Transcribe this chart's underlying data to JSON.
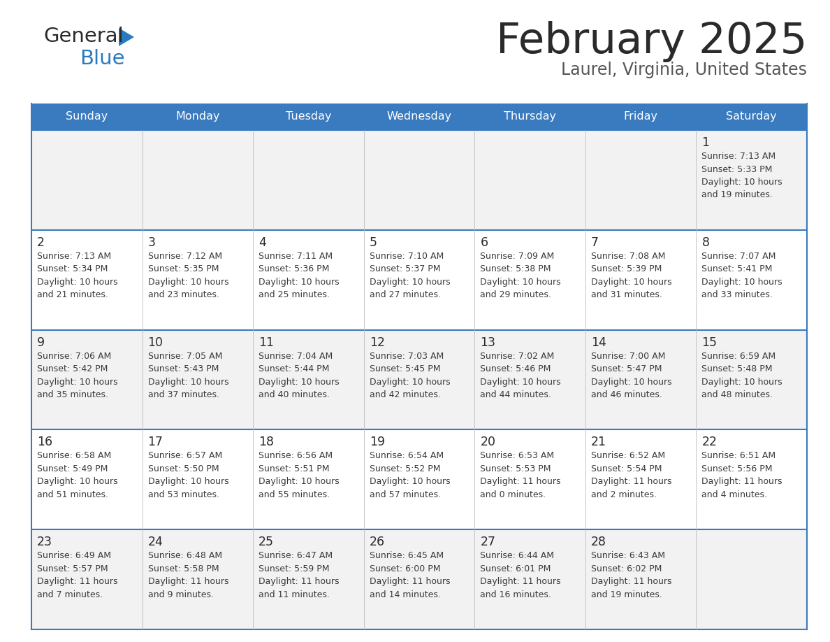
{
  "title": "February 2025",
  "subtitle": "Laurel, Virginia, United States",
  "days_of_week": [
    "Sunday",
    "Monday",
    "Tuesday",
    "Wednesday",
    "Thursday",
    "Friday",
    "Saturday"
  ],
  "header_bg": "#3a7abf",
  "header_text": "#ffffff",
  "cell_bg_odd": "#f2f2f2",
  "cell_bg_even": "#ffffff",
  "border_color": "#3a7abf",
  "day_num_color": "#2a2a2a",
  "info_color": "#3a3a3a",
  "title_color": "#2a2a2a",
  "subtitle_color": "#555555",
  "calendar_data": [
    [
      null,
      null,
      null,
      null,
      null,
      null,
      {
        "day": "1",
        "sunrise": "7:13 AM",
        "sunset": "5:33 PM",
        "daylight_line1": "Daylight: 10 hours",
        "daylight_line2": "and 19 minutes."
      }
    ],
    [
      {
        "day": "2",
        "sunrise": "7:13 AM",
        "sunset": "5:34 PM",
        "daylight_line1": "Daylight: 10 hours",
        "daylight_line2": "and 21 minutes."
      },
      {
        "day": "3",
        "sunrise": "7:12 AM",
        "sunset": "5:35 PM",
        "daylight_line1": "Daylight: 10 hours",
        "daylight_line2": "and 23 minutes."
      },
      {
        "day": "4",
        "sunrise": "7:11 AM",
        "sunset": "5:36 PM",
        "daylight_line1": "Daylight: 10 hours",
        "daylight_line2": "and 25 minutes."
      },
      {
        "day": "5",
        "sunrise": "7:10 AM",
        "sunset": "5:37 PM",
        "daylight_line1": "Daylight: 10 hours",
        "daylight_line2": "and 27 minutes."
      },
      {
        "day": "6",
        "sunrise": "7:09 AM",
        "sunset": "5:38 PM",
        "daylight_line1": "Daylight: 10 hours",
        "daylight_line2": "and 29 minutes."
      },
      {
        "day": "7",
        "sunrise": "7:08 AM",
        "sunset": "5:39 PM",
        "daylight_line1": "Daylight: 10 hours",
        "daylight_line2": "and 31 minutes."
      },
      {
        "day": "8",
        "sunrise": "7:07 AM",
        "sunset": "5:41 PM",
        "daylight_line1": "Daylight: 10 hours",
        "daylight_line2": "and 33 minutes."
      }
    ],
    [
      {
        "day": "9",
        "sunrise": "7:06 AM",
        "sunset": "5:42 PM",
        "daylight_line1": "Daylight: 10 hours",
        "daylight_line2": "and 35 minutes."
      },
      {
        "day": "10",
        "sunrise": "7:05 AM",
        "sunset": "5:43 PM",
        "daylight_line1": "Daylight: 10 hours",
        "daylight_line2": "and 37 minutes."
      },
      {
        "day": "11",
        "sunrise": "7:04 AM",
        "sunset": "5:44 PM",
        "daylight_line1": "Daylight: 10 hours",
        "daylight_line2": "and 40 minutes."
      },
      {
        "day": "12",
        "sunrise": "7:03 AM",
        "sunset": "5:45 PM",
        "daylight_line1": "Daylight: 10 hours",
        "daylight_line2": "and 42 minutes."
      },
      {
        "day": "13",
        "sunrise": "7:02 AM",
        "sunset": "5:46 PM",
        "daylight_line1": "Daylight: 10 hours",
        "daylight_line2": "and 44 minutes."
      },
      {
        "day": "14",
        "sunrise": "7:00 AM",
        "sunset": "5:47 PM",
        "daylight_line1": "Daylight: 10 hours",
        "daylight_line2": "and 46 minutes."
      },
      {
        "day": "15",
        "sunrise": "6:59 AM",
        "sunset": "5:48 PM",
        "daylight_line1": "Daylight: 10 hours",
        "daylight_line2": "and 48 minutes."
      }
    ],
    [
      {
        "day": "16",
        "sunrise": "6:58 AM",
        "sunset": "5:49 PM",
        "daylight_line1": "Daylight: 10 hours",
        "daylight_line2": "and 51 minutes."
      },
      {
        "day": "17",
        "sunrise": "6:57 AM",
        "sunset": "5:50 PM",
        "daylight_line1": "Daylight: 10 hours",
        "daylight_line2": "and 53 minutes."
      },
      {
        "day": "18",
        "sunrise": "6:56 AM",
        "sunset": "5:51 PM",
        "daylight_line1": "Daylight: 10 hours",
        "daylight_line2": "and 55 minutes."
      },
      {
        "day": "19",
        "sunrise": "6:54 AM",
        "sunset": "5:52 PM",
        "daylight_line1": "Daylight: 10 hours",
        "daylight_line2": "and 57 minutes."
      },
      {
        "day": "20",
        "sunrise": "6:53 AM",
        "sunset": "5:53 PM",
        "daylight_line1": "Daylight: 11 hours",
        "daylight_line2": "and 0 minutes."
      },
      {
        "day": "21",
        "sunrise": "6:52 AM",
        "sunset": "5:54 PM",
        "daylight_line1": "Daylight: 11 hours",
        "daylight_line2": "and 2 minutes."
      },
      {
        "day": "22",
        "sunrise": "6:51 AM",
        "sunset": "5:56 PM",
        "daylight_line1": "Daylight: 11 hours",
        "daylight_line2": "and 4 minutes."
      }
    ],
    [
      {
        "day": "23",
        "sunrise": "6:49 AM",
        "sunset": "5:57 PM",
        "daylight_line1": "Daylight: 11 hours",
        "daylight_line2": "and 7 minutes."
      },
      {
        "day": "24",
        "sunrise": "6:48 AM",
        "sunset": "5:58 PM",
        "daylight_line1": "Daylight: 11 hours",
        "daylight_line2": "and 9 minutes."
      },
      {
        "day": "25",
        "sunrise": "6:47 AM",
        "sunset": "5:59 PM",
        "daylight_line1": "Daylight: 11 hours",
        "daylight_line2": "and 11 minutes."
      },
      {
        "day": "26",
        "sunrise": "6:45 AM",
        "sunset": "6:00 PM",
        "daylight_line1": "Daylight: 11 hours",
        "daylight_line2": "and 14 minutes."
      },
      {
        "day": "27",
        "sunrise": "6:44 AM",
        "sunset": "6:01 PM",
        "daylight_line1": "Daylight: 11 hours",
        "daylight_line2": "and 16 minutes."
      },
      {
        "day": "28",
        "sunrise": "6:43 AM",
        "sunset": "6:02 PM",
        "daylight_line1": "Daylight: 11 hours",
        "daylight_line2": "and 19 minutes."
      },
      null
    ]
  ],
  "logo_text1": "General",
  "logo_text2": "Blue",
  "logo_color1": "#2a2a2a",
  "logo_color2": "#2a7abf",
  "logo_triangle_color": "#2a7abf"
}
